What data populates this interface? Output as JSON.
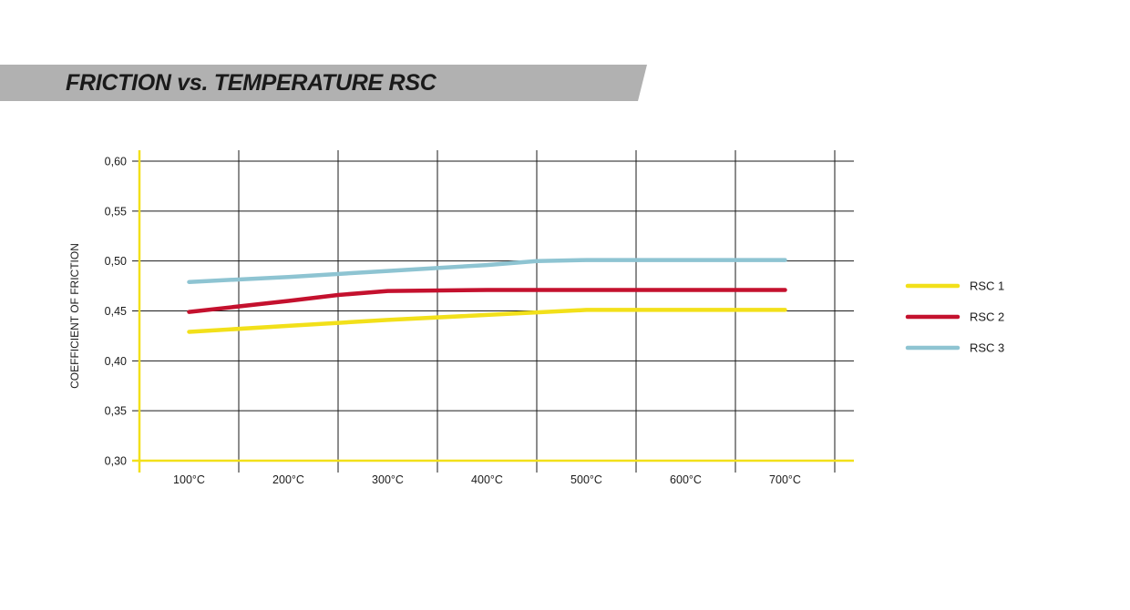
{
  "header": {
    "title": "FRICTION vs. TEMPERATURE RSC"
  },
  "colors": {
    "banner": "#b1b1b1",
    "axis": "#f2e01a",
    "grid": "#1a1a1a"
  },
  "chart_data": {
    "type": "line",
    "title": "FRICTION vs. TEMPERATURE RSC",
    "xlabel": "",
    "ylabel": "COEFFICIENT OF FRICTION",
    "categories": [
      "100°C",
      "200°C",
      "300°C",
      "400°C",
      "500°C",
      "600°C",
      "700°C"
    ],
    "x": [
      100,
      200,
      300,
      400,
      500,
      600,
      700
    ],
    "y_ticks": [
      "0,30",
      "0,35",
      "0,40",
      "0,45",
      "0,50",
      "0,55",
      "0,60"
    ],
    "ylim": [
      0.3,
      0.6
    ],
    "grid": true,
    "legend_position": "right",
    "series": [
      {
        "name": "RSC 1",
        "color": "#f2e01a",
        "x": [
          100,
          200,
          300,
          400,
          500,
          600,
          700
        ],
        "y": [
          0.429,
          0.435,
          0.441,
          0.446,
          0.451,
          0.451,
          0.451
        ]
      },
      {
        "name": "RSC 2",
        "color": "#c4112e",
        "x": [
          100,
          200,
          250,
          300,
          400,
          500,
          600,
          700
        ],
        "y": [
          0.449,
          0.46,
          0.466,
          0.47,
          0.471,
          0.471,
          0.471,
          0.471
        ]
      },
      {
        "name": "RSC 3",
        "color": "#8ec4d2",
        "x": [
          100,
          200,
          300,
          400,
          450,
          500,
          600,
          700
        ],
        "y": [
          0.479,
          0.484,
          0.49,
          0.496,
          0.5,
          0.501,
          0.501,
          0.501
        ]
      }
    ]
  }
}
